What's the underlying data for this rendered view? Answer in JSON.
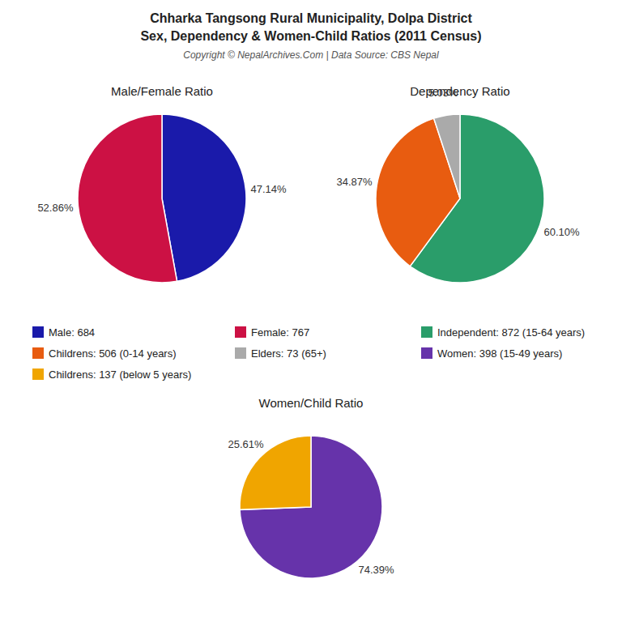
{
  "title": [
    "Chharka Tangsong Rural Municipality, Dolpa District",
    "Sex, Dependency & Women-Child Ratios (2011 Census)"
  ],
  "subtitle": "Copyright © NepalArchives.Com | Data Source: CBS Nepal",
  "chart_data": [
    {
      "type": "pie",
      "title": "Male/Female Ratio",
      "categories": [
        "Male: 684",
        "Female: 767"
      ],
      "values": [
        47.14,
        52.86
      ],
      "value_labels": [
        "47.14%",
        "52.86%"
      ],
      "colors": [
        "#1a1aaa",
        "#cc1144"
      ],
      "data_labels": true,
      "legend": "center"
    },
    {
      "type": "pie",
      "title": "Dependency Ratio",
      "categories": [
        "Independent: 872 (15-64 years)",
        "Childrens: 506 (0-14 years)",
        "Elders: 73 (65+)"
      ],
      "values": [
        60.1,
        34.87,
        5.03
      ],
      "value_labels": [
        "60.10%",
        "34.87%",
        "5.03%"
      ],
      "colors": [
        "#2a9d6a",
        "#e85c10",
        "#aaaaaa"
      ],
      "data_labels": true,
      "legend": "center"
    },
    {
      "type": "pie",
      "title": "Women/Child Ratio",
      "categories": [
        "Women: 398 (15-49 years)",
        "Childrens: 137 (below 5 years)"
      ],
      "values": [
        74.39,
        25.61
      ],
      "value_labels": [
        "74.39%",
        "25.61%"
      ],
      "colors": [
        "#6633aa",
        "#f0a500"
      ],
      "data_labels": true,
      "legend": "center"
    }
  ]
}
